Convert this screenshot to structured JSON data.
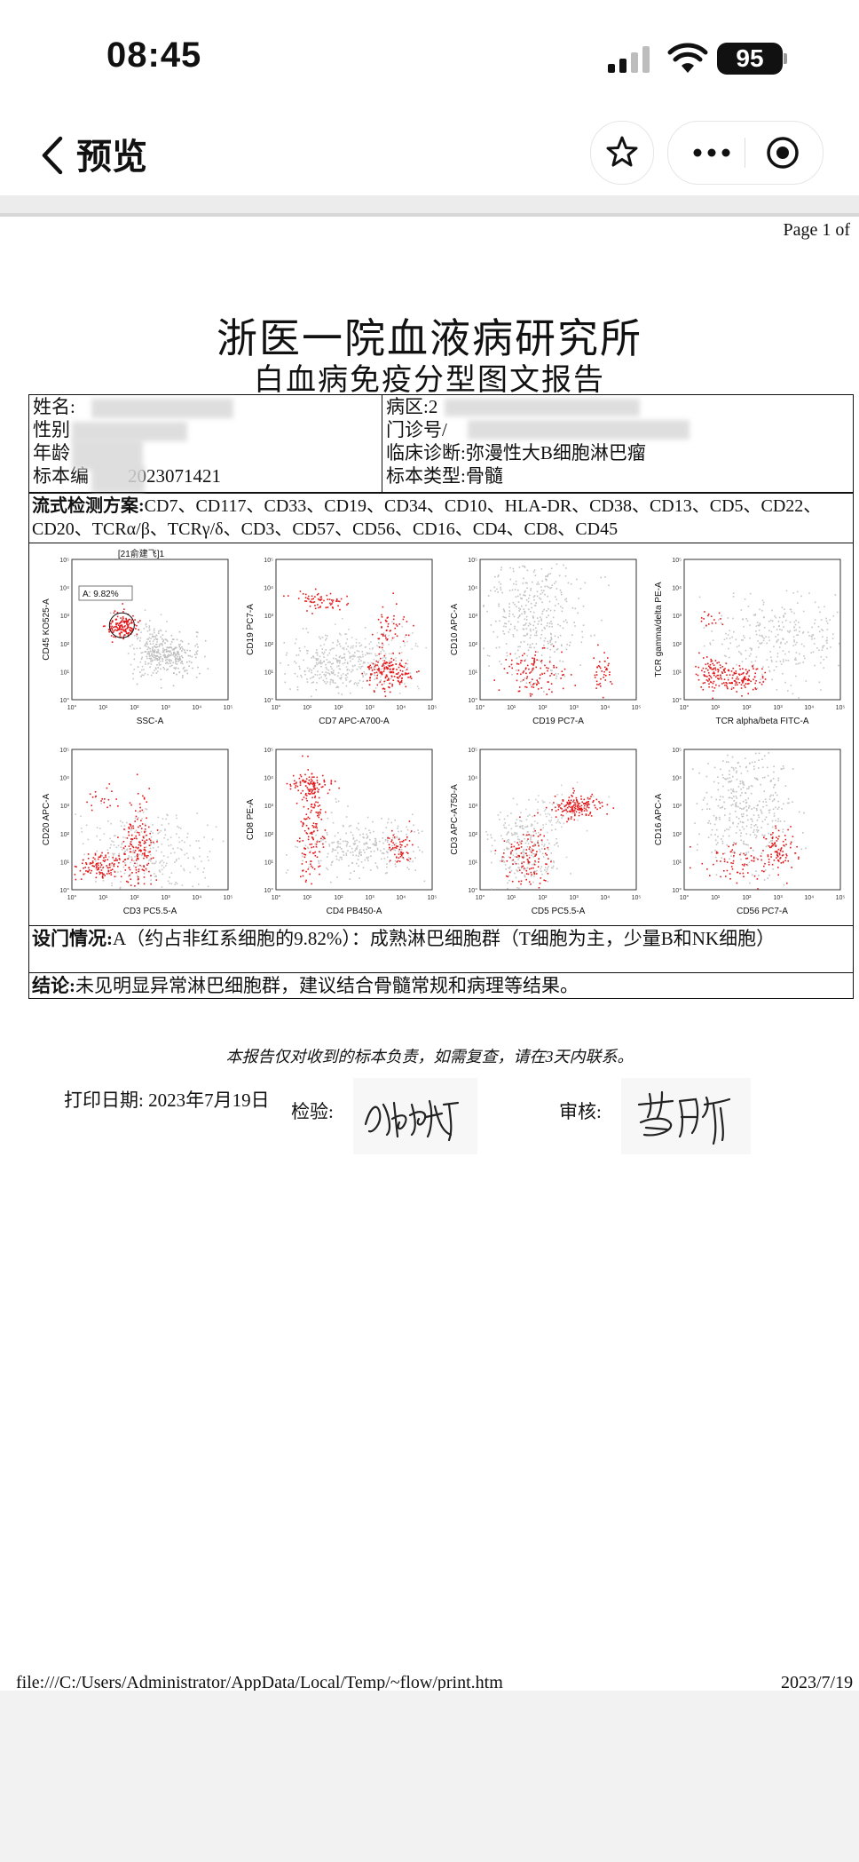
{
  "status": {
    "time": "08:45",
    "battery": "95"
  },
  "nav": {
    "title": "预览"
  },
  "page": {
    "page_of": "Page 1 of"
  },
  "report": {
    "title": "浙医一院血液病研究所",
    "subtitle": "白血病免疫分型图文报告",
    "left_rows": [
      {
        "label": "姓名:",
        "value": ""
      },
      {
        "label": "性别",
        "value": ""
      },
      {
        "label": "年龄",
        "value": ""
      },
      {
        "label": "标本编",
        "value": "2023071421"
      }
    ],
    "right_rows": [
      {
        "label": "病区:",
        "value": "2"
      },
      {
        "label": "门诊号/",
        "value": ""
      },
      {
        "label": "临床诊断:",
        "value": "弥漫性大B细胞淋巴瘤"
      },
      {
        "label": "标本类型:",
        "value": "骨髓"
      }
    ],
    "scheme_label": "流式检测方案:",
    "scheme_text": "CD7、CD117、CD33、CD19、CD34、CD10、HLA-DR、CD38、CD13、CD5、CD22、CD20、TCRα/β、TCRγ/δ、CD3、CD57、CD56、CD16、CD4、CD8、CD45",
    "settings_label": "设门情况:",
    "settings_text": "A（约占非红系细胞的9.82%）：成熟淋巴细胞群（T细胞为主，少量B和NK细胞）",
    "conclusion_label": "结论:",
    "conclusion_text": "未见明显异常淋巴细胞群，建议结合骨髓常规和病理等结果。",
    "notice": "本报告仅对收到的标本负责，如需复查，请在3天内联系。",
    "print_date_label": "打印日期:",
    "print_date": "2023年7月19日",
    "inspect_label": "检验:",
    "review_label": "审核:"
  },
  "plots": [
    {
      "x_label": "SSC-A",
      "y_label": "CD45 KO525-A",
      "title": "[21俞建飞]1",
      "gate": "A: 9.82%"
    },
    {
      "x_label": "CD7 APC-A700-A",
      "y_label": "CD19 PC7-A"
    },
    {
      "x_label": "CD19 PC7-A",
      "y_label": "CD10 APC-A"
    },
    {
      "x_label": "TCR alpha/beta FITC-A",
      "y_label": "TCR gamma/delta PE-A"
    },
    {
      "x_label": "CD3 PC5.5-A",
      "y_label": "CD20 APC-A"
    },
    {
      "x_label": "CD4 PB450-A",
      "y_label": "CD8 PE-A"
    },
    {
      "x_label": "CD5 PC5.5-A",
      "y_label": "CD3 APC-A750-A"
    },
    {
      "x_label": "CD56 PC7-A",
      "y_label": "CD16 APC-A"
    }
  ],
  "footer": {
    "path": "file:///C:/Users/Administrator/AppData/Local/Temp/~flow/print.htm",
    "date": "2023/7/19"
  }
}
